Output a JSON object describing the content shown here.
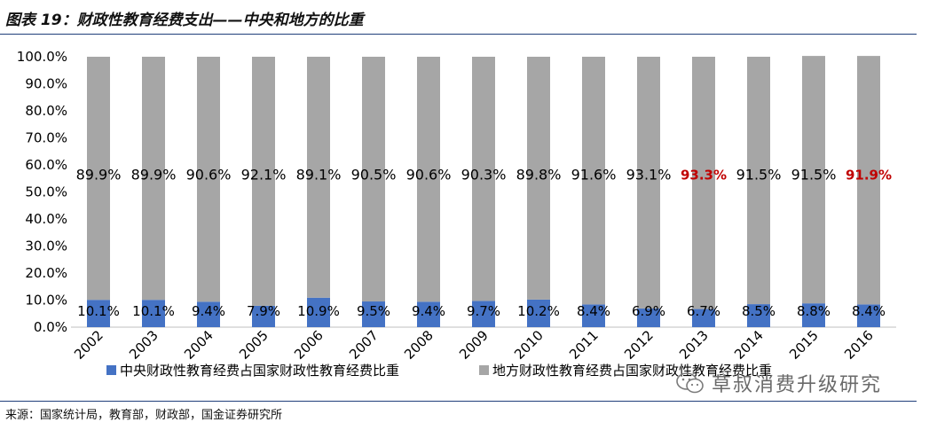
{
  "header": {
    "title": "图表 19：财政性教育经费支出——中央和地方的比重"
  },
  "source": {
    "text": "来源：国家统计局，教育部，财政部，国金证券研究所"
  },
  "watermark": {
    "text": "草叔消费升级研究"
  },
  "chart_data": {
    "type": "bar",
    "stacked": true,
    "categories": [
      "2002",
      "2003",
      "2004",
      "2005",
      "2006",
      "2007",
      "2008",
      "2009",
      "2010",
      "2011",
      "2012",
      "2013",
      "2014",
      "2015",
      "2016"
    ],
    "series": [
      {
        "name": "中央财政性教育经费占国家财政性教育经费比重",
        "color": "#4472c4",
        "values": [
          10.1,
          10.1,
          9.4,
          7.9,
          10.9,
          9.5,
          9.4,
          9.7,
          10.2,
          8.4,
          6.9,
          6.7,
          8.5,
          8.8,
          8.4
        ],
        "labels": [
          "10.1%",
          "10.1%",
          "9.4%",
          "7.9%",
          "10.9%",
          "9.5%",
          "9.4%",
          "9.7%",
          "10.2%",
          "8.4%",
          "6.9%",
          "6.7%",
          "8.5%",
          "8.8%",
          "8.4%"
        ]
      },
      {
        "name": "地方财政性教育经费占国家财政性教育经费比重",
        "color": "#a6a6a6",
        "values": [
          89.9,
          89.9,
          90.6,
          92.1,
          89.1,
          90.5,
          90.6,
          90.3,
          89.8,
          91.6,
          93.1,
          93.3,
          91.5,
          91.5,
          91.9
        ],
        "labels": [
          "89.9%",
          "89.9%",
          "90.6%",
          "92.1%",
          "89.1%",
          "90.5%",
          "90.6%",
          "90.3%",
          "89.8%",
          "91.6%",
          "93.1%",
          "93.3%",
          "91.5%",
          "91.5%",
          "91.9%"
        ],
        "highlight_color": "#c00000",
        "highlighted_categories": [
          "2013",
          "2016"
        ]
      }
    ],
    "y_tick_labels": [
      "0.0%",
      "10.0%",
      "20.0%",
      "30.0%",
      "40.0%",
      "50.0%",
      "60.0%",
      "70.0%",
      "80.0%",
      "90.0%",
      "100.0%"
    ],
    "ylim": [
      0,
      100
    ],
    "grid": false,
    "legend_position": "bottom"
  }
}
